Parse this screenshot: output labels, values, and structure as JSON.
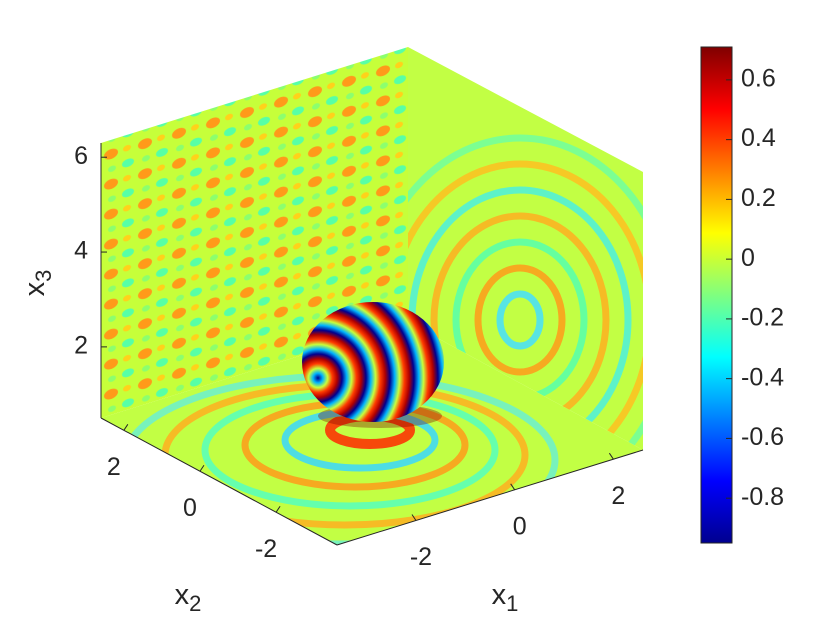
{
  "chart_data": {
    "type": "surface3d",
    "xlabel": {
      "base": "x",
      "subscript": "1"
    },
    "ylabel": {
      "base": "x",
      "subscript": "2"
    },
    "zlabel": {
      "base": "x",
      "subscript": "3"
    },
    "xlim": [
      -3.6,
      2.6
    ],
    "xticks": [
      -2,
      0,
      2
    ],
    "ylim": [
      -3.6,
      2.6
    ],
    "yticks": [
      -2,
      0,
      2
    ],
    "zlim": [
      0.5,
      6.3
    ],
    "zticks": [
      2,
      4,
      6
    ],
    "colormap": "jet",
    "clim": [
      -0.95,
      0.71
    ],
    "cticks": [
      -0.8,
      -0.6,
      -0.4,
      -0.2,
      0,
      0.2,
      0.4,
      0.6
    ]
  }
}
